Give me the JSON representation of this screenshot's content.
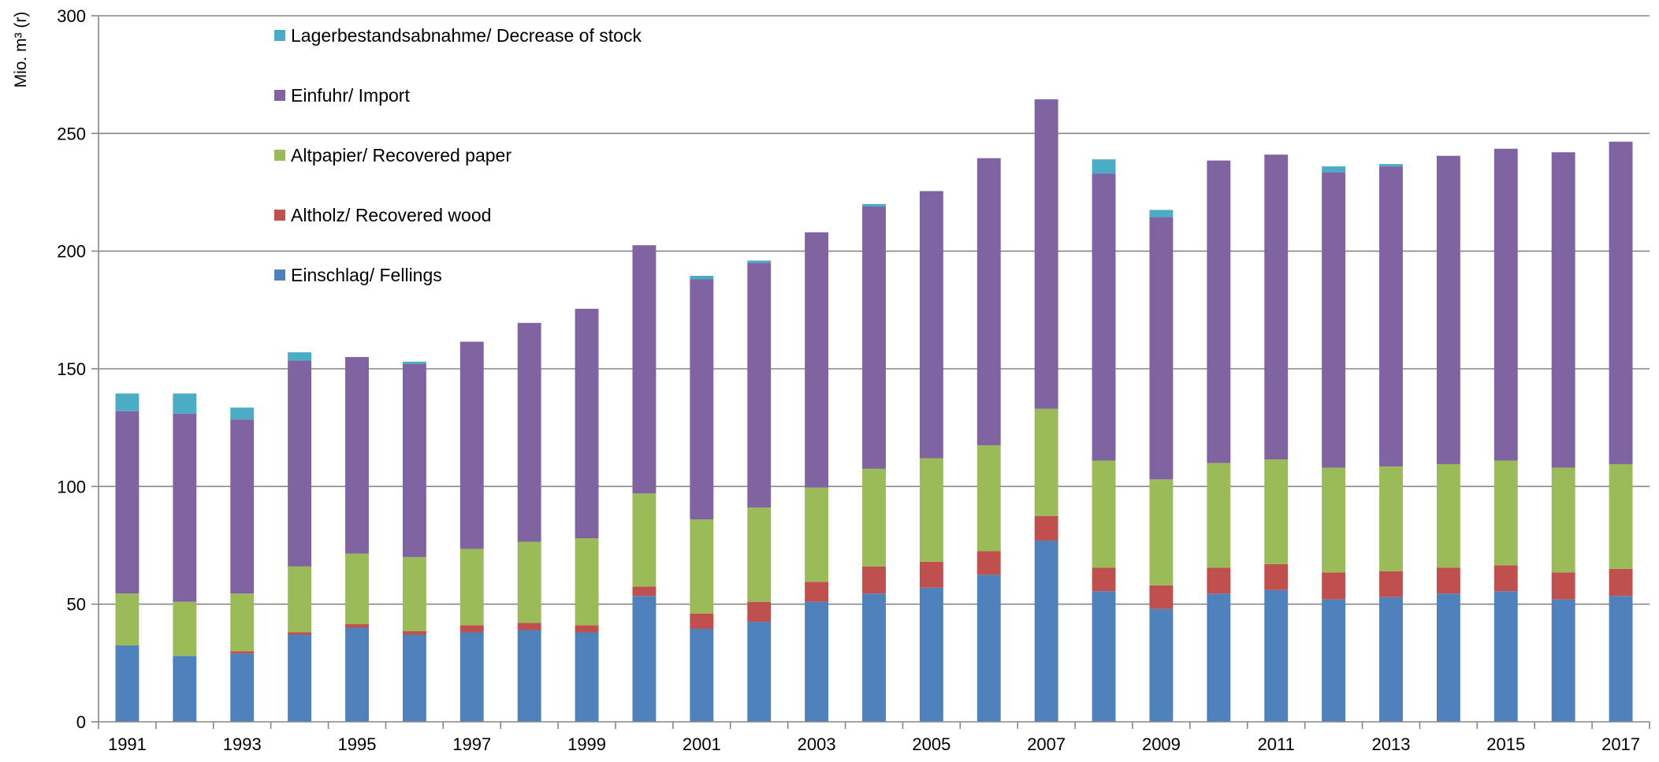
{
  "chart_data": {
    "type": "bar",
    "stacked": true,
    "title": "",
    "ylabel": "Mio. m³ (r)",
    "xlabel": "",
    "ylim": [
      0,
      300
    ],
    "yticks": [
      0,
      50,
      100,
      150,
      200,
      250,
      300
    ],
    "grid": "horizontal",
    "legend_position": "top-left-inside",
    "categories": [
      "1991",
      "1992",
      "1993",
      "1994",
      "1995",
      "1996",
      "1997",
      "1998",
      "1999",
      "2000",
      "2001",
      "2002",
      "2003",
      "2004",
      "2005",
      "2006",
      "2007",
      "2008",
      "2009",
      "2010",
      "2011",
      "2012",
      "2013",
      "2014",
      "2015",
      "2016",
      "2017"
    ],
    "x_tick_labels": [
      "1991",
      "1993",
      "1995",
      "1997",
      "1999",
      "2001",
      "2003",
      "2005",
      "2007",
      "2009",
      "2011",
      "2013",
      "2015",
      "2017"
    ],
    "series": [
      {
        "name": "Einschlag/ Fellings",
        "color": "#4f81bd",
        "values": [
          32.5,
          28,
          29,
          37,
          40,
          37,
          38,
          39,
          38,
          53.5,
          39.5,
          42.5,
          51,
          54.5,
          57,
          62.5,
          77,
          55.5,
          48,
          54.5,
          56,
          52,
          53,
          54.5,
          55.5,
          52,
          53.5
        ]
      },
      {
        "name": "Altholz/ Recovered wood",
        "color": "#c0504d",
        "values": [
          0,
          0,
          1,
          1,
          1.5,
          1.5,
          3,
          3,
          3,
          4,
          6.5,
          8.5,
          8.5,
          11.5,
          11,
          10,
          10.5,
          10,
          10,
          11,
          11,
          11.5,
          11,
          11,
          11,
          11.5,
          11.5
        ]
      },
      {
        "name": "Altpapier/ Recovered paper",
        "color": "#9bbb59",
        "values": [
          22,
          23,
          24.5,
          28,
          30,
          31.5,
          32.5,
          34.5,
          37,
          39.5,
          40,
          40,
          40,
          41.5,
          44,
          45,
          45.5,
          45.5,
          45,
          44.5,
          44.5,
          44.5,
          44.5,
          44,
          44.5,
          44.5,
          44.5
        ]
      },
      {
        "name": "Einfuhr/ Import",
        "color": "#8064a2",
        "values": [
          77.5,
          80,
          74,
          87.5,
          83.5,
          82,
          88,
          93,
          97.5,
          105.5,
          102,
          104,
          108.5,
          111.5,
          113.5,
          122,
          131.5,
          122,
          111.5,
          128.5,
          129.5,
          125.5,
          127.5,
          131,
          132.5,
          134,
          137
        ]
      },
      {
        "name": "Lagerbestandsabnahme/ Decrease of stock",
        "color": "#4bacc6",
        "values": [
          7.5,
          8.5,
          5,
          3.5,
          0,
          1,
          0,
          0,
          0,
          0,
          1.5,
          1,
          0,
          1,
          0,
          0,
          0,
          6,
          3,
          0,
          0,
          2.5,
          1,
          0,
          0,
          0,
          0
        ]
      }
    ],
    "legend_order": [
      "Lagerbestandsabnahme/ Decrease of stock",
      "Einfuhr/ Import",
      "Altpapier/ Recovered paper",
      "Altholz/ Recovered wood",
      "Einschlag/ Fellings"
    ],
    "colors": {
      "grid": "#878787",
      "axis": "#878787"
    }
  }
}
